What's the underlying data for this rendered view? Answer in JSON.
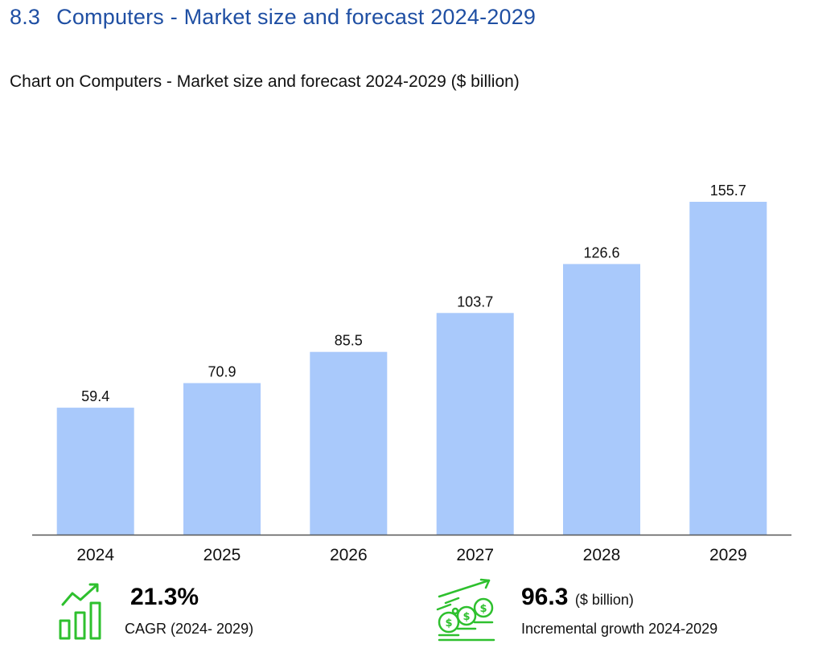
{
  "header": {
    "section_number": "8.3",
    "section_title": "Computers - Market size and forecast 2024-2029"
  },
  "chart_caption": "Chart on Computers - Market size and forecast 2024-2029 ($ billion)",
  "chart_data": {
    "type": "bar",
    "title": "Chart on Computers - Market size and forecast 2024-2029 ($ billion)",
    "categories": [
      "2024",
      "2025",
      "2026",
      "2027",
      "2028",
      "2029"
    ],
    "values": [
      59.4,
      70.9,
      85.5,
      103.7,
      126.6,
      155.7
    ],
    "value_labels": [
      "59.4",
      "70.9",
      "85.5",
      "103.7",
      "126.6",
      "155.7"
    ],
    "xlabel": "",
    "ylabel": "$ billion",
    "ylim": [
      0,
      160
    ],
    "grid": false,
    "bar_color": "#a9c9fb",
    "axis_color": "#555555"
  },
  "kpis": {
    "cagr": {
      "value": "21.3%",
      "label": "CAGR (2024- 2029)",
      "icon": "growth-bars-icon"
    },
    "incremental": {
      "value": "96.3",
      "unit": "($ billion)",
      "label": "Incremental growth 2024-2029",
      "icon": "money-growth-icon"
    }
  },
  "colors": {
    "title_blue": "#1f4fa3",
    "icon_green": "#2ec02e"
  }
}
